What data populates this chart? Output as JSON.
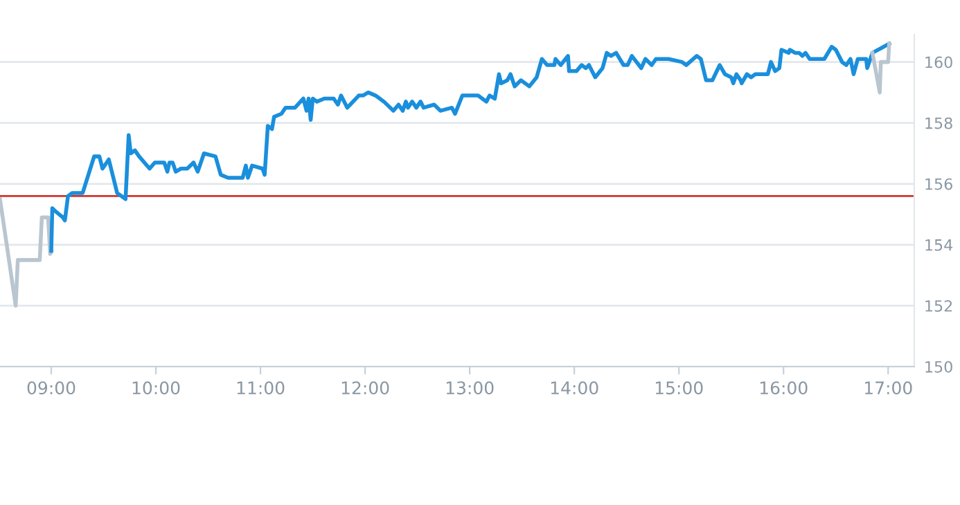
{
  "chart_data": {
    "type": "line",
    "series": [
      {
        "color": "#b9c6d0",
        "x": [
          8.51,
          8.66,
          8.68,
          8.89,
          8.91,
          8.97,
          8.99,
          9.0
        ],
        "values": [
          155.5,
          152.0,
          153.5,
          153.5,
          154.9,
          154.9,
          153.7,
          153.8
        ]
      },
      {
        "color": "#1a8fdc",
        "x": [
          9.0,
          9.01,
          9.04,
          9.11,
          9.13,
          9.16,
          9.2,
          9.3,
          9.41,
          9.46,
          9.49,
          9.55,
          9.63,
          9.71,
          9.74,
          9.76,
          9.8,
          9.84,
          9.94,
          9.99,
          10.08,
          10.11,
          10.13,
          10.16,
          10.19,
          10.24,
          10.3,
          10.36,
          10.4,
          10.46,
          10.57,
          10.62,
          10.69,
          10.83,
          10.86,
          10.88,
          10.92,
          11.02,
          11.04,
          11.07,
          11.11,
          11.13,
          11.2,
          11.24,
          11.33,
          11.41,
          11.44,
          11.46,
          11.48,
          11.5,
          11.54,
          11.61,
          11.7,
          11.74,
          11.77,
          11.83,
          11.94,
          11.98,
          12.03,
          12.1,
          12.18,
          12.27,
          12.32,
          12.36,
          12.39,
          12.41,
          12.45,
          12.49,
          12.53,
          12.56,
          12.66,
          12.72,
          12.83,
          12.86,
          12.93,
          13.08,
          13.16,
          13.19,
          13.24,
          13.28,
          13.3,
          13.36,
          13.39,
          13.43,
          13.49,
          13.57,
          13.64,
          13.69,
          13.74,
          13.81,
          13.82,
          13.87,
          13.94,
          13.95,
          14.02,
          14.07,
          14.11,
          14.14,
          14.2,
          14.27,
          14.31,
          14.35,
          14.4,
          14.47,
          14.51,
          14.55,
          14.64,
          14.68,
          14.74,
          14.78,
          14.9,
          15.03,
          15.07,
          15.17,
          15.21,
          15.26,
          15.32,
          15.39,
          15.44,
          15.5,
          15.52,
          15.55,
          15.59,
          15.6,
          15.65,
          15.69,
          15.73,
          15.85,
          15.88,
          15.92,
          15.96,
          15.98,
          16.05,
          16.06,
          16.11,
          16.15,
          16.18,
          16.21,
          16.25,
          16.39,
          16.46,
          16.5,
          16.56,
          16.6,
          16.64,
          16.67,
          16.71,
          16.79,
          16.8,
          16.85,
          17.01
        ],
        "values": [
          153.8,
          155.2,
          155.1,
          154.9,
          154.8,
          155.6,
          155.7,
          155.7,
          156.9,
          156.9,
          156.5,
          156.8,
          155.7,
          155.5,
          157.6,
          157.0,
          157.1,
          156.9,
          156.5,
          156.7,
          156.7,
          156.4,
          156.7,
          156.7,
          156.4,
          156.5,
          156.5,
          156.7,
          156.4,
          157.0,
          156.9,
          156.3,
          156.2,
          156.2,
          156.6,
          156.2,
          156.6,
          156.5,
          156.3,
          157.9,
          157.8,
          158.2,
          158.3,
          158.5,
          158.5,
          158.8,
          158.4,
          158.8,
          158.1,
          158.8,
          158.7,
          158.8,
          158.8,
          158.6,
          158.9,
          158.5,
          158.9,
          158.9,
          159.0,
          158.9,
          158.7,
          158.4,
          158.6,
          158.4,
          158.7,
          158.5,
          158.7,
          158.5,
          158.7,
          158.5,
          158.6,
          158.4,
          158.5,
          158.3,
          158.9,
          158.9,
          158.7,
          158.9,
          158.8,
          159.6,
          159.3,
          159.4,
          159.6,
          159.2,
          159.4,
          159.2,
          159.5,
          160.1,
          159.9,
          159.9,
          160.1,
          159.9,
          160.2,
          159.7,
          159.7,
          159.9,
          159.8,
          159.9,
          159.5,
          159.8,
          160.3,
          160.2,
          160.3,
          159.9,
          159.9,
          160.2,
          159.8,
          160.1,
          159.9,
          160.1,
          160.1,
          160.0,
          159.9,
          160.2,
          160.1,
          159.4,
          159.4,
          159.9,
          159.6,
          159.5,
          159.3,
          159.6,
          159.4,
          159.3,
          159.6,
          159.5,
          159.6,
          159.6,
          160.0,
          159.7,
          159.8,
          160.4,
          160.3,
          160.4,
          160.3,
          160.3,
          160.2,
          160.3,
          160.1,
          160.1,
          160.5,
          160.4,
          160.0,
          159.9,
          160.1,
          159.6,
          160.1,
          160.1,
          159.8,
          160.3,
          160.6
        ]
      },
      {
        "color": "#b9c6d0",
        "x": [
          16.85,
          16.92,
          16.93,
          17.0,
          17.01
        ],
        "values": [
          160.3,
          159.0,
          160.0,
          160.0,
          160.6
        ]
      }
    ],
    "xlim": [
      8.51,
      17.25
    ],
    "ylim": [
      150,
      160.9
    ],
    "xticks": [
      {
        "value": 9,
        "label": "09:00"
      },
      {
        "value": 10,
        "label": "10:00"
      },
      {
        "value": 11,
        "label": "11:00"
      },
      {
        "value": 12,
        "label": "12:00"
      },
      {
        "value": 13,
        "label": "13:00"
      },
      {
        "value": 14,
        "label": "14:00"
      },
      {
        "value": 15,
        "label": "15:00"
      },
      {
        "value": 16,
        "label": "16:00"
      },
      {
        "value": 17,
        "label": "17:00"
      }
    ],
    "yticks": [
      150,
      152,
      154,
      156,
      158,
      160
    ],
    "ref_lines": [
      {
        "axis": "y",
        "value": 155.6,
        "color": "#d0342c"
      }
    ],
    "grid": "y",
    "marker": "none",
    "line_style": "solid"
  }
}
